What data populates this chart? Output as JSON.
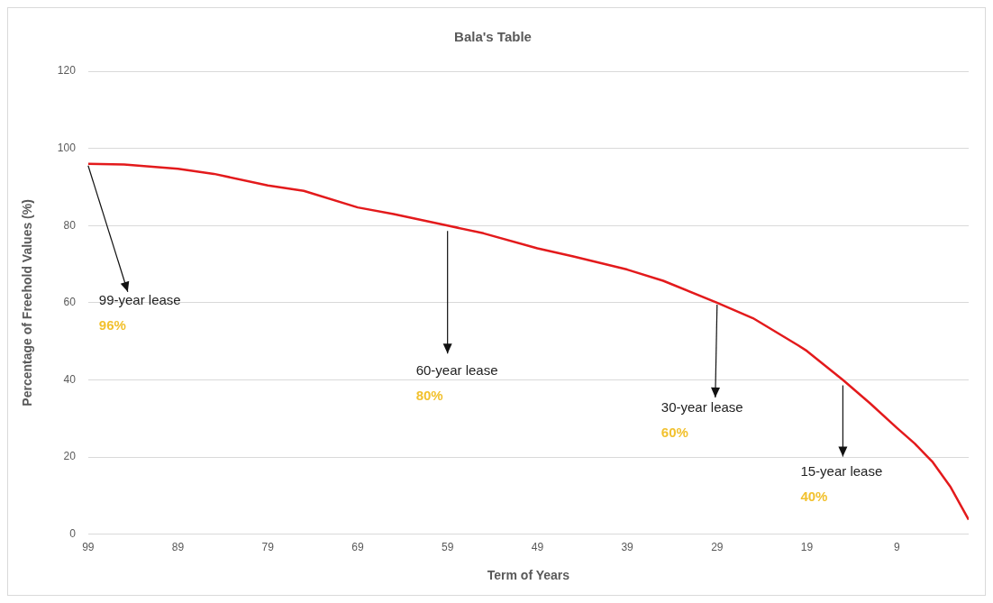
{
  "chart_data": {
    "type": "line",
    "title": "Bala's Table",
    "xlabel": "Term of Years",
    "ylabel": "Percentage of Freehold Values (%)",
    "x": [
      99,
      95,
      89,
      85,
      79,
      75,
      69,
      65,
      59,
      55,
      49,
      45,
      39,
      35,
      29,
      25,
      20,
      19,
      15,
      12,
      9,
      7,
      5,
      3,
      1
    ],
    "series": [
      {
        "color": "#e31a1c",
        "values": [
          96,
          95.8,
          94.7,
          93.4,
          90.4,
          89,
          84.7,
          83,
          80,
          78,
          74.1,
          72,
          68.6,
          65.7,
          60,
          56,
          49,
          47.5,
          40,
          34,
          27.6,
          23.5,
          18.7,
          12.2,
          3.8
        ]
      }
    ],
    "xlim": [
      99,
      1
    ],
    "xticks": [
      99,
      89,
      79,
      69,
      59,
      49,
      39,
      29,
      19,
      9
    ],
    "ylim": [
      0,
      120
    ],
    "yticks": [
      0,
      20,
      40,
      60,
      80,
      100,
      120
    ],
    "grid": "y",
    "legend": false,
    "marker": "none",
    "line_style": "solid",
    "annotations": [
      {
        "text": "99-year lease",
        "x": 99,
        "y": 96
      },
      "96%",
      {
        "text": "60-year lease",
        "x": 59,
        "y": 80
      },
      "80%",
      {
        "text": "30-year lease",
        "x": 29,
        "y": 60
      },
      "60%",
      {
        "text": "15-year lease",
        "x": 15,
        "y": 40
      },
      "40%"
    ]
  }
}
